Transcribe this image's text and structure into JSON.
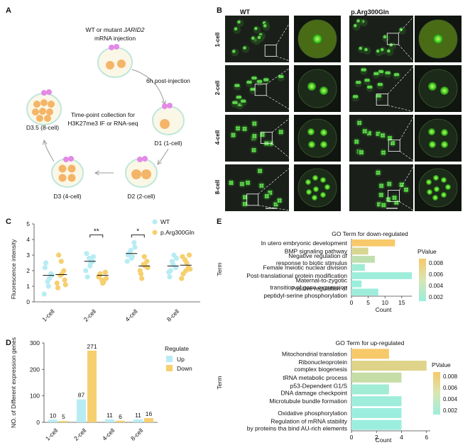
{
  "panel_labels": {
    "a": "A",
    "b": "B",
    "c": "C",
    "d": "D",
    "e": "E"
  },
  "panel_a": {
    "injection_line1": "WT or mutant",
    "injection_gene": "JARID2",
    "injection_line2": "mRNA injection",
    "post_injection": "6h post-injection",
    "center_line1": "Time-point collection for",
    "center_line2": "H3K27me3 IF or RNA-seq",
    "stages": {
      "d1": "D1 (1-cell)",
      "d2": "D2 (2-cell)",
      "d3": "D3 (4-cell)",
      "d35": "D3.5 (8-cell)"
    }
  },
  "panel_b": {
    "col_wt": "WT",
    "col_mut": "p.Arg300Gln",
    "rows": [
      "1-cell",
      "2-cell",
      "4-cell",
      "8-cell"
    ]
  },
  "colors": {
    "wt": "#b8ecf3",
    "mut": "#f6cf6e",
    "accent": "#5bd64a",
    "dark": "#1a1f1a"
  },
  "chart_data": [
    {
      "type": "scatter",
      "panel": "C",
      "ylabel": "Fluorescence intensity",
      "ylim": [
        0,
        5
      ],
      "yticks": [
        "0",
        "1",
        "2",
        "3",
        "4",
        "5"
      ],
      "categories": [
        "1-cell",
        "2-cell",
        "4-cell",
        "8-cell"
      ],
      "legend": [
        "WT",
        "p.Arg300Gln"
      ],
      "significance": [
        {
          "between": "2-cell",
          "label": "**"
        },
        {
          "between": "4-cell",
          "label": "*"
        }
      ],
      "series": [
        {
          "name": "WT",
          "points": [
            [
              0.5,
              1.3,
              1.8,
              2.2,
              1.0,
              1.7,
              2.5,
              1.5
            ],
            [
              2.0,
              2.8,
              2.6,
              3.1,
              2.3,
              2.9,
              1.6,
              2.5
            ],
            [
              2.6,
              3.3,
              3.8,
              3.0,
              2.8,
              3.5,
              3.1,
              2.9
            ],
            [
              1.9,
              2.6,
              2.2,
              1.6,
              2.4,
              2.8,
              2.0,
              3.0
            ]
          ],
          "means": [
            1.7,
            2.6,
            3.1,
            2.3
          ]
        },
        {
          "name": "p.Arg300Gln",
          "points": [
            [
              1.2,
              1.7,
              2.0,
              0.9,
              2.6,
              1.4,
              3.0,
              1.8,
              1.1
            ],
            [
              1.6,
              1.4,
              1.9,
              1.7,
              1.2,
              1.5,
              1.8,
              1.3
            ],
            [
              2.0,
              2.4,
              2.6,
              1.8,
              2.9,
              2.2,
              1.5,
              2.3
            ],
            [
              1.5,
              2.7,
              2.2,
              2.9,
              2.0,
              3.0,
              1.8,
              2.5,
              2.1
            ]
          ],
          "means": [
            1.75,
            1.7,
            2.3,
            2.35
          ]
        }
      ]
    },
    {
      "type": "bar",
      "panel": "D",
      "ylabel": "NO. of Different expression genes",
      "ylim": [
        0,
        300
      ],
      "yticks": [
        "0",
        "100",
        "200",
        "300"
      ],
      "categories": [
        "1-cell",
        "2-cell",
        "4-cell",
        "8-cell"
      ],
      "legend_title": "Regulate",
      "series": [
        {
          "name": "Up",
          "values": [
            10,
            87,
            11,
            11
          ],
          "labels": [
            "10",
            "87",
            "11",
            "11"
          ]
        },
        {
          "name": "Down",
          "values": [
            5,
            271,
            6,
            16
          ],
          "labels": [
            "5",
            "271",
            "6",
            "16"
          ]
        }
      ]
    },
    {
      "type": "bar",
      "orientation": "horizontal",
      "panel": "E-down",
      "title": "GO Term for down-regulated",
      "xlabel": "Count",
      "ylabel": "Term",
      "xlim": [
        0,
        18
      ],
      "xticks": [
        "0",
        "5",
        "10",
        "15"
      ],
      "color_legend_title": "PValue",
      "color_ticks": [
        "0.008",
        "0.006",
        "0.004",
        "0.002"
      ],
      "terms": [
        {
          "lines": [
            "In utero embryonic development"
          ],
          "count": 13,
          "p": 0.0085
        },
        {
          "lines": [
            "BMP signaling pathway"
          ],
          "count": 5,
          "p": 0.006
        },
        {
          "lines": [
            "Negative regulation of",
            "response to biotic stimulus"
          ],
          "count": 7,
          "p": 0.004
        },
        {
          "lines": [
            "Female meiotic nuclear division"
          ],
          "count": 4,
          "p": 0.0015
        },
        {
          "lines": [
            "Post-translational protein modification"
          ],
          "count": 18,
          "p": 0.0012
        },
        {
          "lines": [
            "Maternal-to-zygotic",
            "transition of gene expression"
          ],
          "count": 3,
          "p": 0.001
        },
        {
          "lines": [
            "Positive regulation of",
            "peptidyl-serine phosphorylation"
          ],
          "count": 8,
          "p": 0.0012
        }
      ]
    },
    {
      "type": "bar",
      "orientation": "horizontal",
      "panel": "E-up",
      "title": "GO Term for up-regulated",
      "xlabel": "Count",
      "ylabel": "Term",
      "xlim": [
        0,
        6.3
      ],
      "xticks": [
        "0",
        "2",
        "4",
        "6"
      ],
      "color_legend_title": "PValue",
      "color_ticks": [
        "0.008",
        "0.006",
        "0.004",
        "0.002"
      ],
      "terms": [
        {
          "lines": [
            "Mitochondrial translation"
          ],
          "count": 3,
          "p": 0.0085
        },
        {
          "lines": [
            "Ribonucleoprotein",
            "complex biogenesis"
          ],
          "count": 6,
          "p": 0.0065
        },
        {
          "lines": [
            "tRNA metabolic process"
          ],
          "count": 4,
          "p": 0.0045
        },
        {
          "lines": [
            "p53-Dependent G1/S",
            "DNA damage checkpoint"
          ],
          "count": 3,
          "p": 0.0015
        },
        {
          "lines": [
            "Microtubule bundle formation"
          ],
          "count": 4,
          "p": 0.0012
        },
        {
          "lines": [
            "Oxidative phosphorylation"
          ],
          "count": 4,
          "p": 0.001
        },
        {
          "lines": [
            "Regulation of mRNA stability",
            "by proteins tha bind AU-rich elements"
          ],
          "count": 4,
          "p": 0.001
        }
      ]
    }
  ]
}
